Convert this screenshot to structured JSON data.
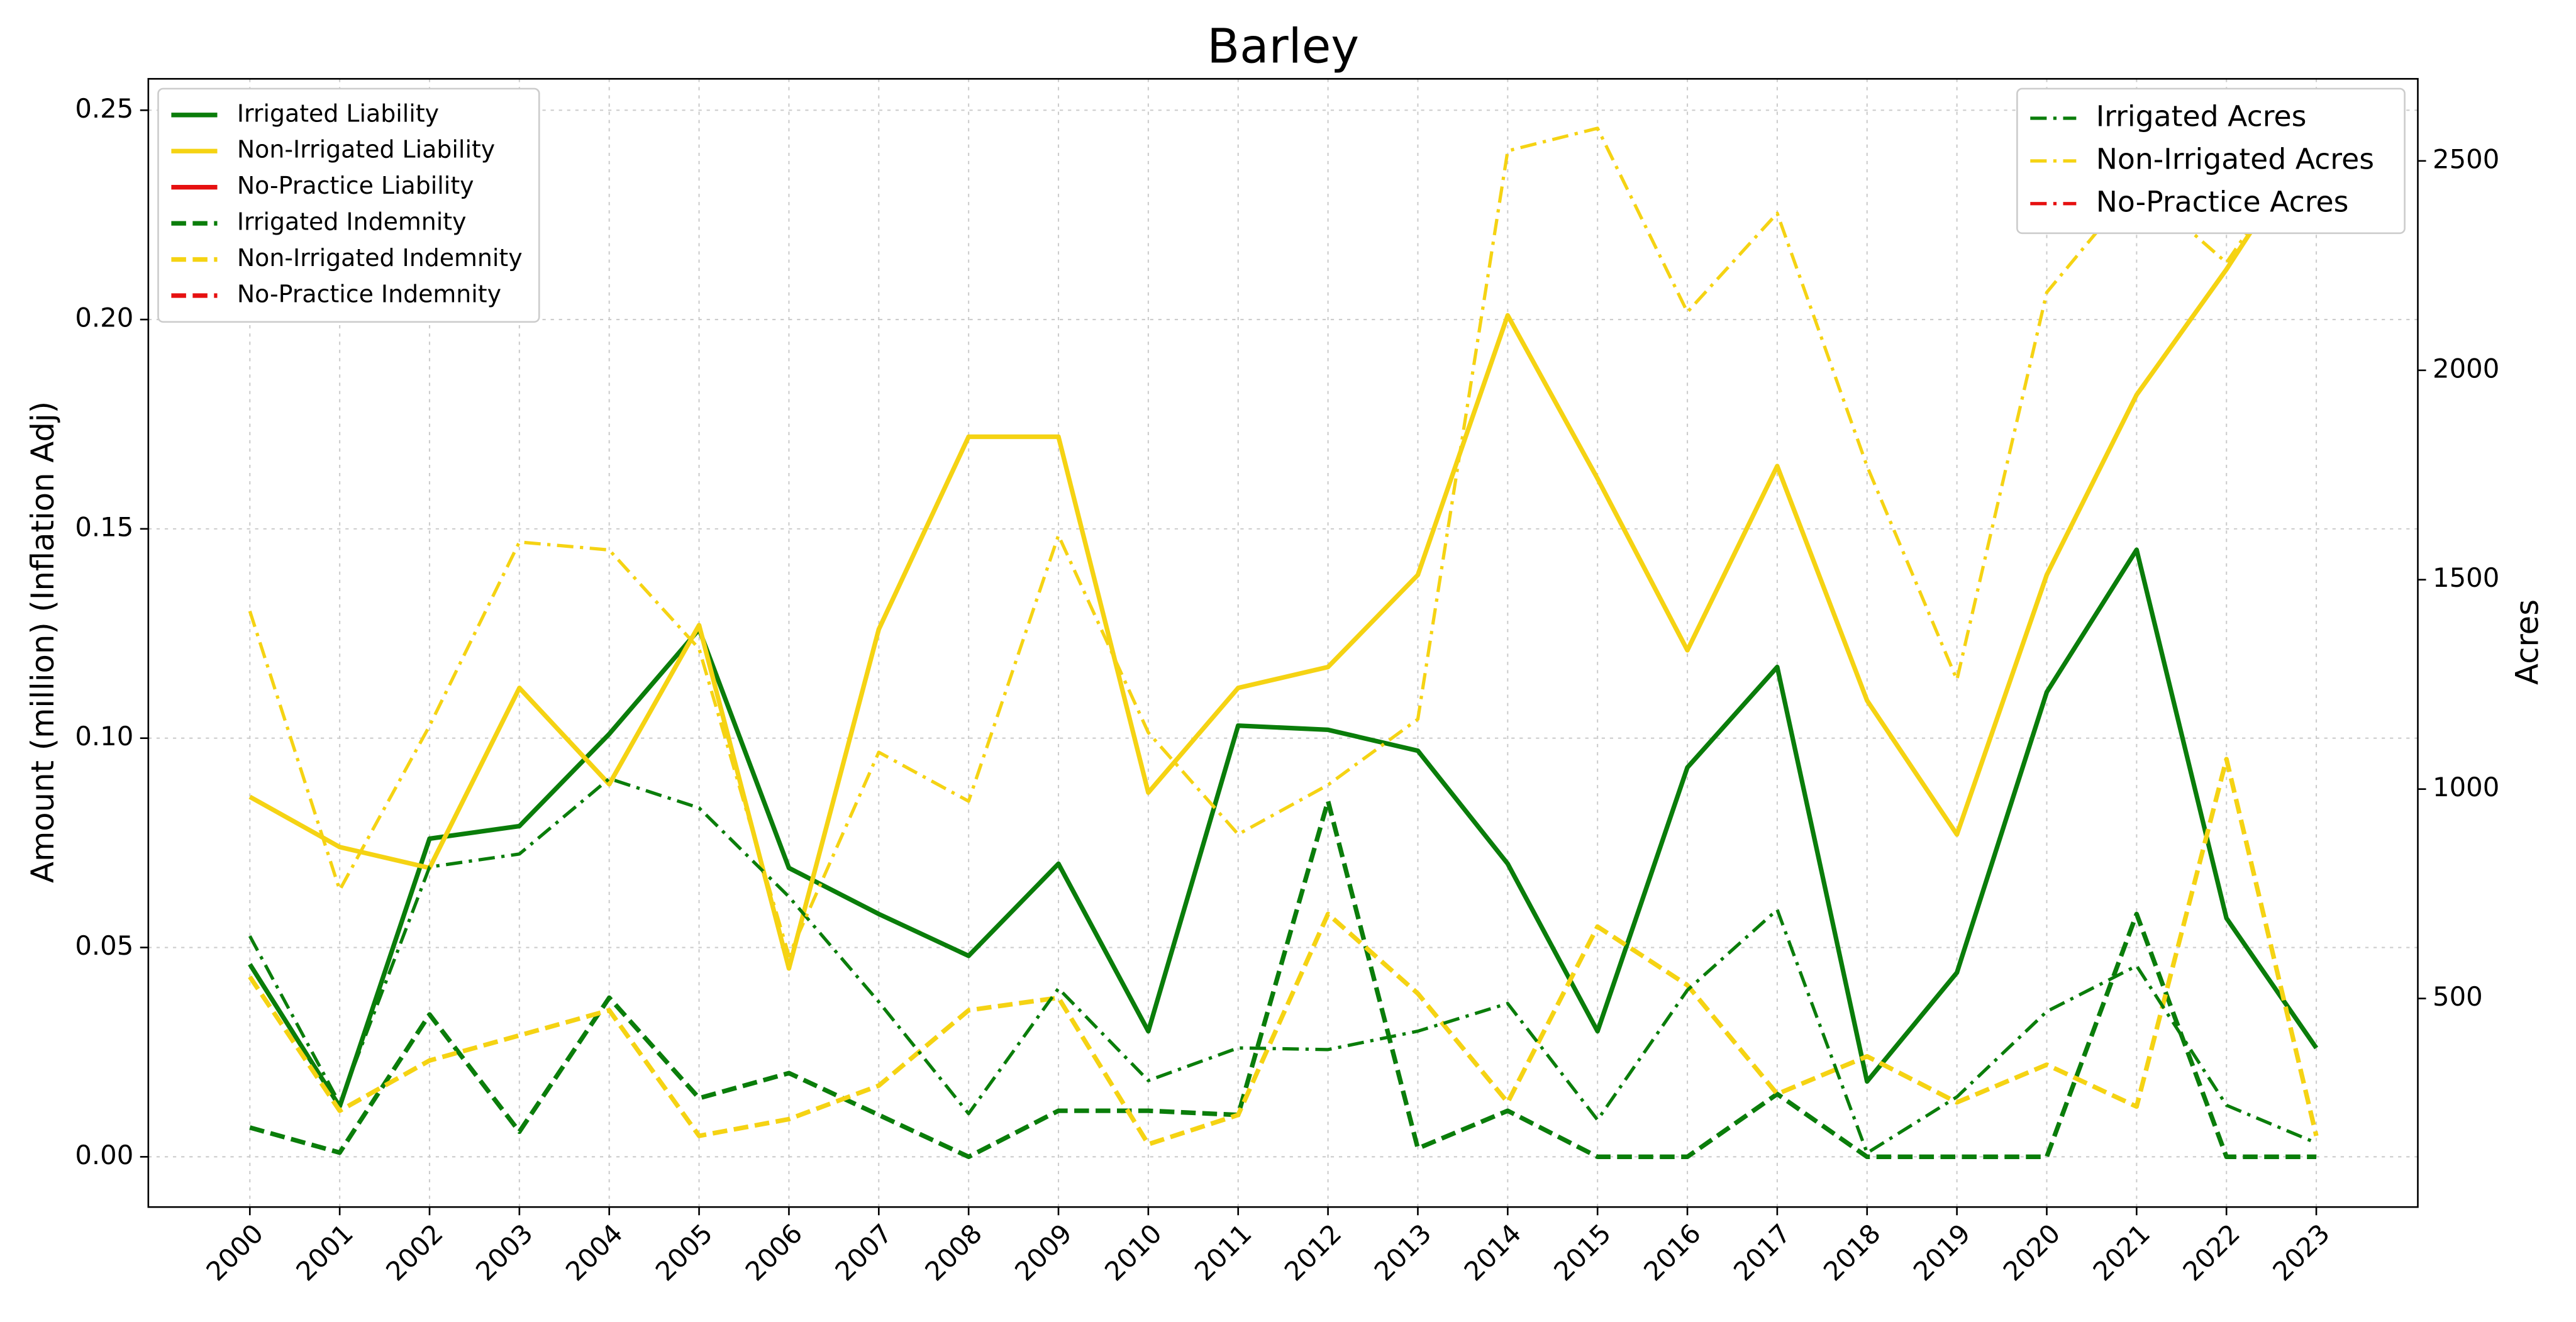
{
  "chart_data": {
    "type": "line",
    "title": "Barley",
    "ylabel": "Amount (million) (Inflation Adj)",
    "y2label": "Acres",
    "categories": [
      "2000",
      "2001",
      "2002",
      "2003",
      "2004",
      "2005",
      "2006",
      "2007",
      "2008",
      "2009",
      "2010",
      "2011",
      "2012",
      "2013",
      "2014",
      "2015",
      "2016",
      "2017",
      "2018",
      "2019",
      "2020",
      "2021",
      "2022",
      "2023"
    ],
    "ylim": [
      -0.012,
      0.2575
    ],
    "yticks": [
      {
        "value": 0,
        "label": "0.00"
      },
      {
        "value": 0.05,
        "label": "0.05"
      },
      {
        "value": 0.1,
        "label": "0.10"
      },
      {
        "value": 0.15,
        "label": "0.15"
      },
      {
        "value": 0.2,
        "label": "0.20"
      },
      {
        "value": 0.25,
        "label": "0.25"
      }
    ],
    "y2lim": [
      2,
      2696
    ],
    "y2ticks": [
      500,
      1000,
      1500,
      2000,
      2500
    ],
    "grid": true,
    "legend": "upper left",
    "legend2": "upper right",
    "series": [
      {
        "name": "Irrigated Liability",
        "color": "#0a7d0a",
        "linestyle": "solid",
        "axis": "y",
        "values": [
          0.046,
          0.012,
          0.076,
          0.079,
          0.101,
          0.126,
          0.069,
          0.058,
          0.048,
          0.07,
          0.03,
          0.103,
          0.102,
          0.097,
          0.07,
          0.03,
          0.093,
          0.117,
          0.018,
          0.044,
          0.111,
          0.145,
          0.057,
          0.026
        ]
      },
      {
        "name": "Non-Irrigated Liability",
        "color": "#f5d313",
        "linestyle": "solid",
        "axis": "y",
        "values": [
          0.086,
          0.074,
          0.069,
          0.112,
          0.089,
          0.127,
          0.045,
          0.126,
          0.172,
          0.172,
          0.087,
          0.112,
          0.117,
          0.139,
          0.201,
          0.162,
          0.121,
          0.165,
          0.109,
          0.077,
          0.139,
          0.182,
          0.212,
          0.245
        ]
      },
      {
        "name": "No-Practice Liability",
        "color": "#e61010",
        "linestyle": "solid",
        "axis": "y",
        "values": [
          null,
          null,
          null,
          null,
          null,
          null,
          null,
          null,
          null,
          null,
          null,
          null,
          null,
          null,
          null,
          null,
          null,
          null,
          null,
          null,
          null,
          null,
          null,
          null
        ]
      },
      {
        "name": "Irrigated Indemnity",
        "color": "#0a7d0a",
        "linestyle": "dashed",
        "axis": "y",
        "values": [
          0.007,
          0.001,
          0.034,
          0.006,
          0.038,
          0.014,
          0.02,
          0.01,
          0.0,
          0.011,
          0.011,
          0.01,
          0.085,
          0.002,
          0.011,
          0.0,
          0.0,
          0.015,
          0.0,
          0.0,
          0.0,
          0.058,
          0.0,
          0.0
        ]
      },
      {
        "name": "Non-Irrigated Indemnity",
        "color": "#f5d313",
        "linestyle": "dashed",
        "axis": "y",
        "values": [
          0.043,
          0.011,
          0.023,
          0.029,
          0.035,
          0.005,
          0.009,
          0.017,
          0.035,
          0.038,
          0.003,
          0.01,
          0.058,
          0.039,
          0.013,
          0.055,
          0.041,
          0.015,
          0.024,
          0.013,
          0.022,
          0.012,
          0.095,
          0.005
        ]
      },
      {
        "name": "No-Practice Indemnity",
        "color": "#e61010",
        "linestyle": "dashed",
        "axis": "y",
        "values": [
          null,
          null,
          null,
          null,
          null,
          null,
          null,
          null,
          null,
          null,
          null,
          null,
          null,
          null,
          null,
          null,
          null,
          null,
          null,
          null,
          null,
          null,
          null,
          null
        ]
      },
      {
        "name": "Irrigated Acres",
        "color": "#0a7d0a",
        "linestyle": "dashdot",
        "axis": "y2",
        "values": [
          649,
          249,
          814,
          845,
          1025,
          955,
          743,
          492,
          225,
          524,
          304,
          382,
          378,
          422,
          488,
          210,
          520,
          712,
          131,
          265,
          469,
          578,
          245,
          155
        ]
      },
      {
        "name": "Non-Irrigated Acres",
        "color": "#f5d313",
        "linestyle": "dashdot",
        "axis": "y2",
        "values": [
          1425,
          759,
          1151,
          1590,
          1571,
          1335,
          602,
          1088,
          971,
          1606,
          1135,
          892,
          1010,
          1167,
          2524,
          2578,
          2139,
          2375,
          1771,
          1261,
          2186,
          2445,
          2257,
          2571
        ]
      },
      {
        "name": "No-Practice Acres",
        "color": "#e61010",
        "linestyle": "dashdot",
        "axis": "y2",
        "values": [
          null,
          null,
          null,
          null,
          null,
          null,
          null,
          null,
          null,
          null,
          null,
          null,
          null,
          null,
          null,
          null,
          null,
          null,
          null,
          null,
          null,
          null,
          null,
          null
        ]
      }
    ]
  }
}
